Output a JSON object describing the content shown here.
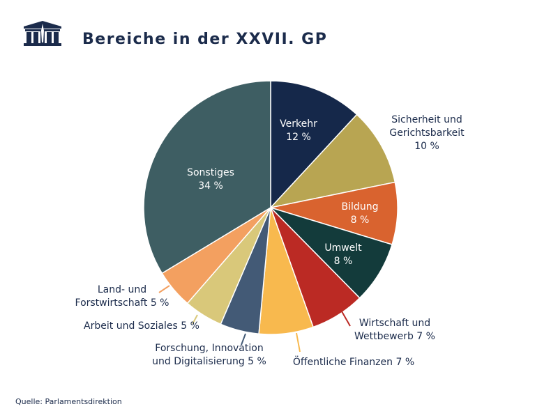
{
  "title": "Bereiche in der XXVII. GP",
  "source": "Quelle: Parlamentsdirektion",
  "logo_icon": "parliament-building-icon",
  "chart_data": {
    "type": "pie",
    "title": "Bereiche in der XXVII. GP",
    "start": "top, clockwise",
    "slices": [
      {
        "label": "Verkehr",
        "value": 12,
        "text": "12 %",
        "color": "#15284a"
      },
      {
        "label": "Sicherheit und Gerichtsbarkeit",
        "value": 10,
        "text": "10 %",
        "color": "#b8a552"
      },
      {
        "label": "Bildung",
        "value": 8,
        "text": "8 %",
        "color": "#d9632f"
      },
      {
        "label": "Umwelt",
        "value": 8,
        "text": "8 %",
        "color": "#133b3b"
      },
      {
        "label": "Wirtschaft und Wettbewerb",
        "value": 7,
        "text": "7 %",
        "color": "#bb2a24"
      },
      {
        "label": "Öffentliche Finanzen",
        "value": 7,
        "text": "7 %",
        "color": "#f8b94e"
      },
      {
        "label": "Forschung, Innovation und Digitalisierung",
        "value": 5,
        "text": "5 %",
        "color": "#435a76"
      },
      {
        "label": "Arbeit und Soziales",
        "value": 5,
        "text": "5 %",
        "color": "#d9c87a"
      },
      {
        "label": "Land- und Forstwirtschaft",
        "value": 5,
        "text": "5 %",
        "color": "#f3a060"
      },
      {
        "label": "Sonstiges",
        "value": 34,
        "text": "34 %",
        "color": "#3e5e63"
      }
    ]
  }
}
